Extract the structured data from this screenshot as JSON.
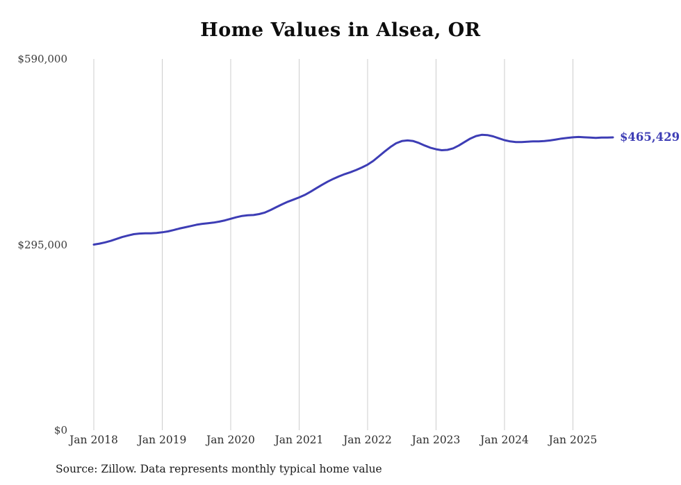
{
  "title": "Home Values in Alsea, OR",
  "source": "Source: Zillow. Data represents monthly typical home value",
  "end_label": "$465,429",
  "colors": {
    "line": "#3d3db5",
    "grid": "#cccccc",
    "axis_text": "#3a3a3a",
    "title": "#0d0d0d",
    "end_label": "#3d3db5"
  },
  "y_axis": {
    "labels": [
      "$590,000",
      "$295,000",
      "$0"
    ],
    "values": [
      590000,
      295000,
      0
    ]
  },
  "x_axis": {
    "labels": [
      "Jan 2018",
      "Jan 2019",
      "Jan 2020",
      "Jan 2021",
      "Jan 2022",
      "Jan 2023",
      "Jan 2024",
      "Jan 2025"
    ]
  },
  "chart_data": {
    "type": "line",
    "title": "Home Values in Alsea, OR",
    "x_start": "2018-01",
    "x_end": "2025-08",
    "x_interval": "monthly",
    "x_tick_labels": [
      "Jan 2018",
      "Jan 2019",
      "Jan 2020",
      "Jan 2021",
      "Jan 2022",
      "Jan 2023",
      "Jan 2024",
      "Jan 2025"
    ],
    "ylim": [
      0,
      590000
    ],
    "y_ticks": [
      0,
      295000,
      590000
    ],
    "grid": "vertical-only",
    "legend": "none",
    "final_value": 465429,
    "final_value_label": "$465,429",
    "source": "Source: Zillow. Data represents monthly typical home value",
    "series": [
      {
        "name": "Typical home value",
        "values": [
          295000,
          296500,
          298500,
          301000,
          304000,
          307000,
          309500,
          311500,
          312500,
          313000,
          313000,
          313500,
          314500,
          316000,
          318000,
          320500,
          322500,
          324500,
          326500,
          328000,
          329000,
          330000,
          331500,
          333500,
          336000,
          338500,
          340500,
          341500,
          342000,
          343500,
          346000,
          350000,
          354500,
          359000,
          363000,
          366500,
          370000,
          374000,
          379000,
          384500,
          390000,
          395000,
          399500,
          403500,
          407000,
          410000,
          413500,
          417500,
          422000,
          428000,
          435500,
          443000,
          450000,
          456000,
          459500,
          460500,
          459500,
          456500,
          452500,
          449000,
          446500,
          445000,
          445500,
          448000,
          452500,
          458000,
          463500,
          467500,
          469500,
          469000,
          467000,
          464000,
          461000,
          459000,
          458000,
          458000,
          458500,
          459000,
          459000,
          459500,
          460500,
          462000,
          463500,
          464500,
          465500,
          466000,
          465500,
          465000,
          464500,
          465000,
          465000,
          465429
        ]
      }
    ]
  }
}
